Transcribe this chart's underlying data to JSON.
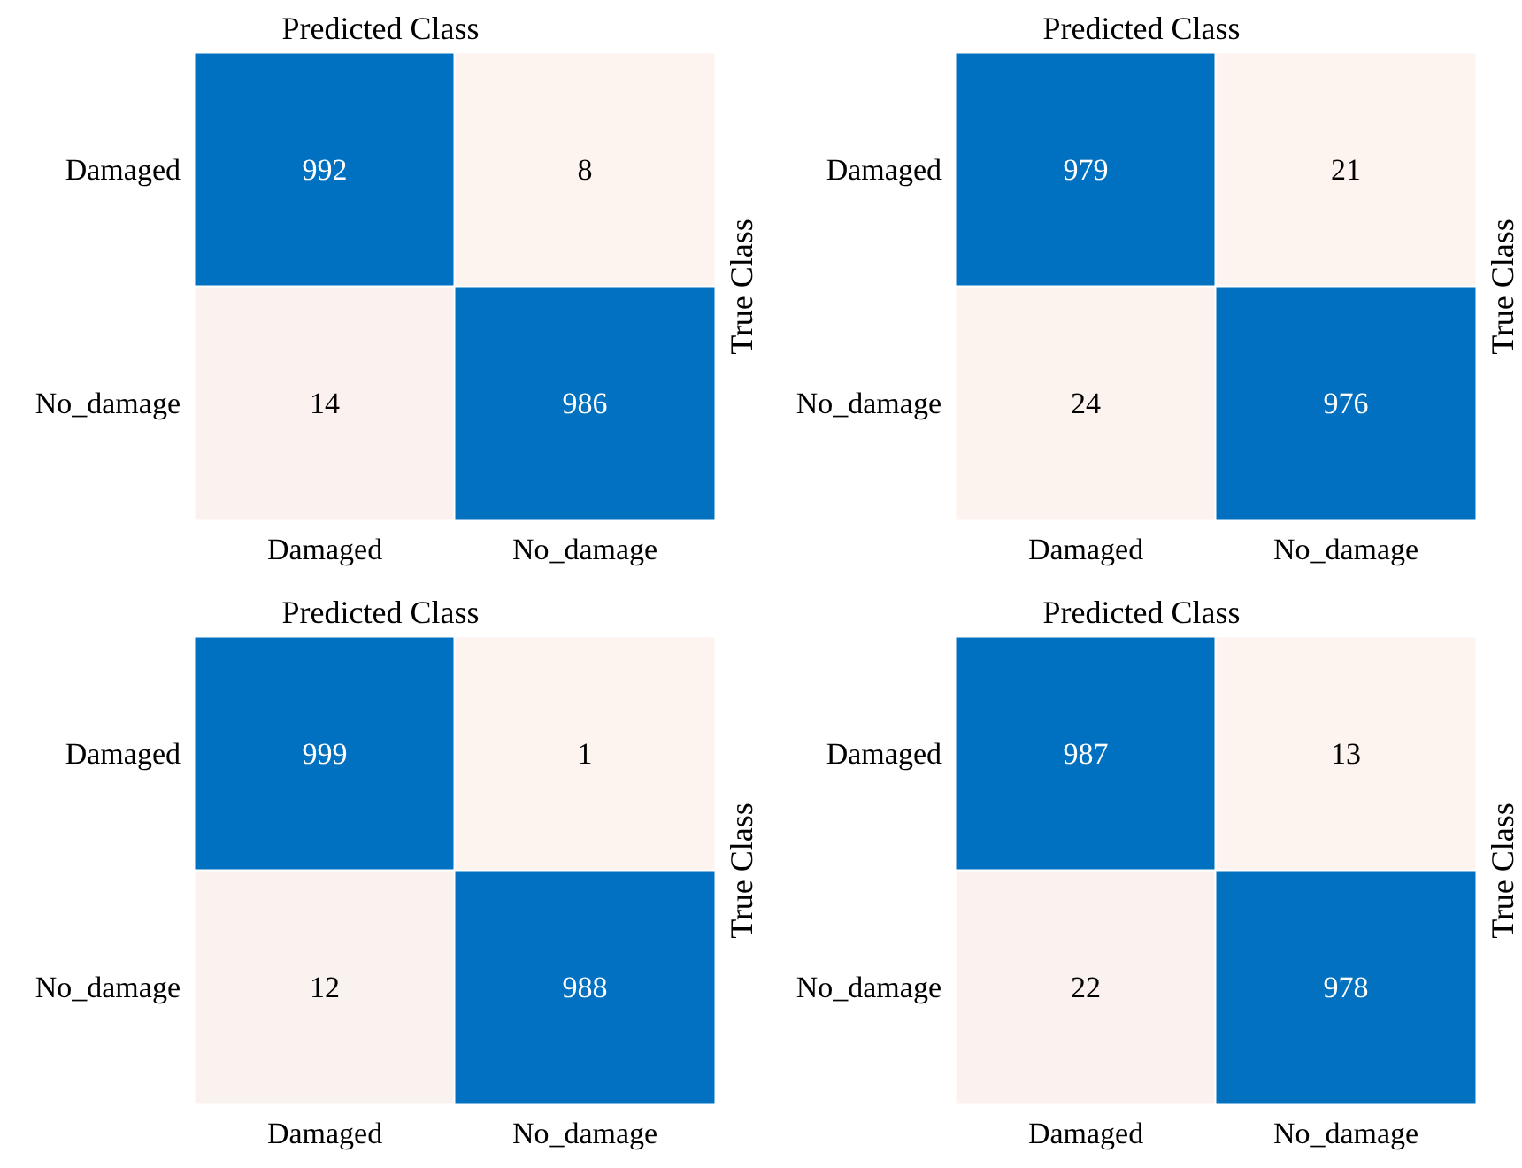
{
  "chart_data": [
    {
      "type": "heatmap",
      "xlabel": "Predicted Class",
      "ylabel": "True Class",
      "categories": [
        "Damaged",
        "No_damage"
      ],
      "y_categories": [
        "Damaged",
        "No_damage"
      ],
      "cells": [
        [
          992,
          8
        ],
        [
          14,
          986
        ]
      ],
      "colors": [
        "#fdf3ef",
        "#0070c0"
      ],
      "data_labels": true
    },
    {
      "type": "heatmap",
      "xlabel": "Predicted Class",
      "ylabel": "True Class",
      "categories": [
        "Damaged",
        "No_damage"
      ],
      "y_categories": [
        "Damaged",
        "No_damage"
      ],
      "cells": [
        [
          979,
          21
        ],
        [
          24,
          976
        ]
      ],
      "colors": [
        "#fdf3ef",
        "#0070c0"
      ],
      "data_labels": true
    },
    {
      "type": "heatmap",
      "xlabel": "Predicted Class",
      "ylabel": "True Class",
      "categories": [
        "Damaged",
        "No_damage"
      ],
      "y_categories": [
        "Damaged",
        "No_damage"
      ],
      "cells": [
        [
          999,
          1
        ],
        [
          12,
          988
        ]
      ],
      "colors": [
        "#fdf3ef",
        "#0070c0"
      ],
      "data_labels": true
    },
    {
      "type": "heatmap",
      "xlabel": "Predicted Class",
      "ylabel": "True Class",
      "categories": [
        "Damaged",
        "No_damage"
      ],
      "y_categories": [
        "Damaged",
        "No_damage"
      ],
      "cells": [
        [
          987,
          13
        ],
        [
          22,
          978
        ]
      ],
      "colors": [
        "#fdf3ef",
        "#0070c0"
      ],
      "data_labels": true
    }
  ]
}
